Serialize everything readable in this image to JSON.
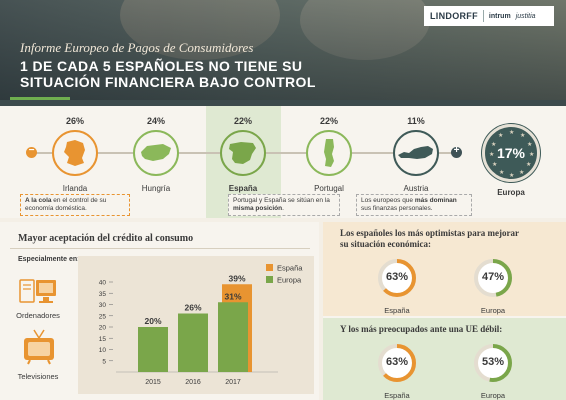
{
  "header": {
    "subtitle": "Informe Europeo de Pagos de Consumidores",
    "title_line1": "1 DE CADA 5 ESPAÑOLES NO TIENE SU",
    "title_line2": "SITUACIÓN FINANCIERA BAJO CONTROL",
    "logo_lindorff": "LINDORFF",
    "logo_intrum": "intrum",
    "logo_justitia": "justitia"
  },
  "countries": [
    {
      "name": "Irlanda",
      "pct": "26%",
      "color": "#e89431"
    },
    {
      "name": "Hungría",
      "pct": "24%",
      "color": "#8bb85a"
    },
    {
      "name": "España",
      "pct": "22%",
      "color": "#7aa64a"
    },
    {
      "name": "Portugal",
      "pct": "22%",
      "color": "#8bb85a"
    },
    {
      "name": "Austria",
      "pct": "11%",
      "color": "#3f5a58"
    }
  ],
  "timeline": {
    "minus_symbol": "−",
    "plus_symbol": "+"
  },
  "europa": {
    "pct": "17%",
    "label": "Europa"
  },
  "notes": {
    "n1_bold": "A la cola",
    "n1_text": " en el control de su economía doméstica.",
    "n2_text": "Portugal y España se sitúan en la ",
    "n2_bold": "misma posición",
    "n2_end": ".",
    "n3_text": "Los europeos que ",
    "n3_bold": "más dominan",
    "n3_end": " sus finanzas personales."
  },
  "credit": {
    "title": "Mayor aceptación del crédito al consumo",
    "spec_label": "Especialmente en:",
    "devices": [
      "Ordenadores",
      "Televisiones"
    ]
  },
  "chart_data": {
    "type": "bar",
    "categories": [
      "2015",
      "2016",
      "2017"
    ],
    "series": [
      {
        "name": "España",
        "values": [
          null,
          null,
          39
        ],
        "labels": [
          "",
          "",
          "39%"
        ],
        "color": "#e89431"
      },
      {
        "name": "Europa",
        "values": [
          20,
          26,
          31
        ],
        "labels": [
          "20%",
          "26%",
          "31%"
        ],
        "color": "#7aa64a"
      }
    ],
    "yticks": [
      "5",
      "10",
      "15",
      "20",
      "25",
      "30",
      "35",
      "40"
    ],
    "ylim": [
      0,
      40
    ],
    "legend": [
      "España",
      "Europa"
    ],
    "legend_position": "top-right"
  },
  "optimistic": {
    "title_line1": "Los españoles los más optimistas para mejorar",
    "title_line2": "su situación económica:",
    "items": [
      {
        "value": "63%",
        "label": "España",
        "color": "#e89431",
        "fraction": 0.63
      },
      {
        "value": "47%",
        "label": "Europa",
        "color": "#7aa64a",
        "fraction": 0.47
      }
    ]
  },
  "worried": {
    "title": "Y los más preocupados ante una UE débil:",
    "items": [
      {
        "value": "63%",
        "label": "España",
        "color": "#e89431",
        "fraction": 0.63
      },
      {
        "value": "53%",
        "label": "Europa",
        "color": "#7aa64a",
        "fraction": 0.53
      }
    ]
  }
}
